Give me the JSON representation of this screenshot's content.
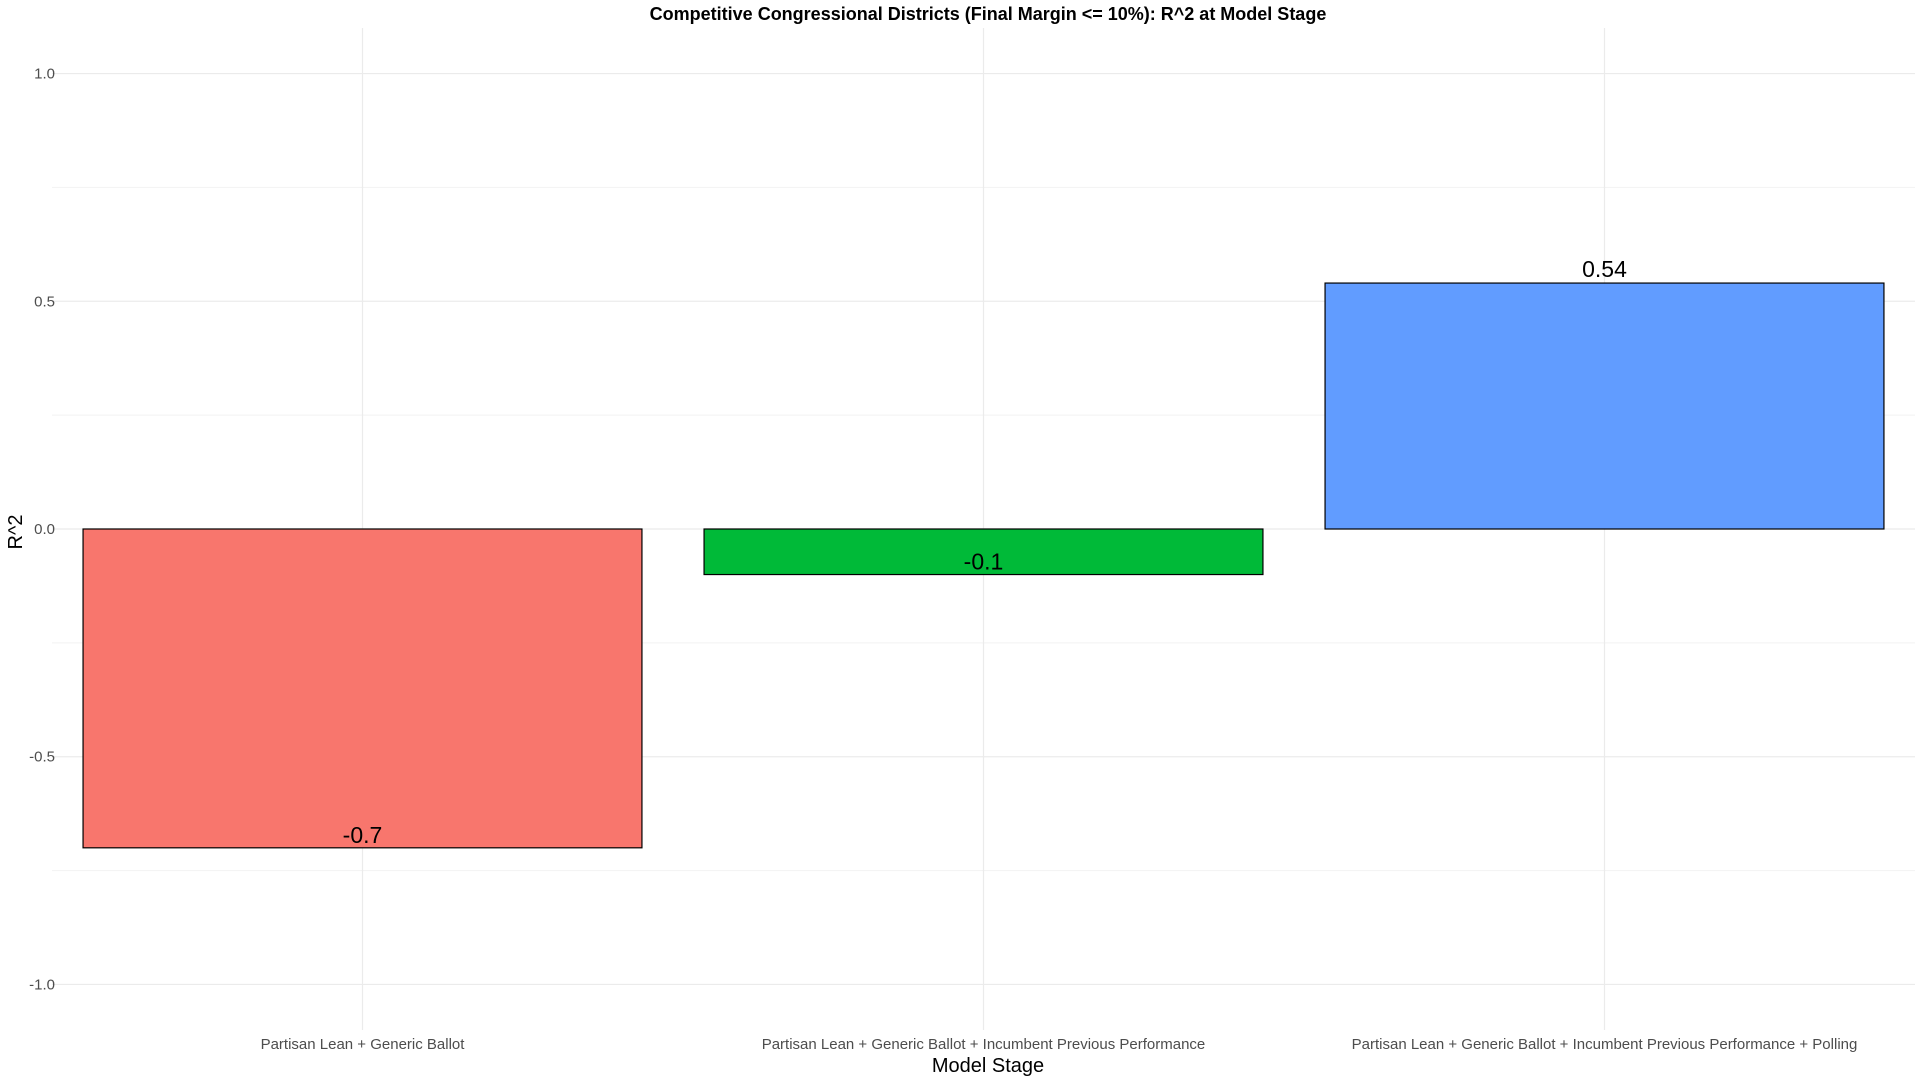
{
  "chart_data": {
    "type": "bar",
    "title": "Competitive Congressional Districts (Final Margin <= 10%): R^2 at Model Stage",
    "xlabel": "Model Stage",
    "ylabel": "R^2",
    "categories": [
      "Partisan Lean + Generic Ballot",
      "Partisan Lean + Generic Ballot + Incumbent Previous Performance",
      "Partisan Lean + Generic Ballot + Incumbent Previous Performance + Polling"
    ],
    "values": [
      -0.7,
      -0.1,
      0.54
    ],
    "data_labels": [
      "-0.7",
      "-0.1",
      "0.54"
    ],
    "colors": [
      "#F8766D",
      "#00BA38",
      "#619CFF"
    ],
    "ylim": [
      -1.1,
      1.1
    ],
    "yticks": [
      -1.0,
      -0.5,
      0.0,
      0.5,
      1.0
    ],
    "ytick_labels": [
      "-1.0",
      "-0.5",
      "0.0",
      "0.5",
      "1.0"
    ],
    "grid": true,
    "legend": "none"
  }
}
